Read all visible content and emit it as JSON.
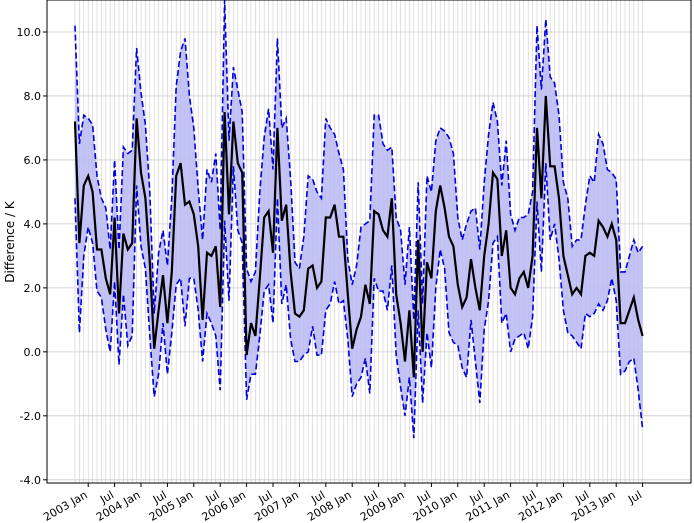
{
  "chart_data": {
    "type": "line",
    "title": "",
    "xlabel": "",
    "ylabel": "Difference / K",
    "ylim": [
      -4.1,
      11.0
    ],
    "yticks": [
      "-4.0",
      "-2.0",
      "0.0",
      "2.0",
      "4.0",
      "6.0",
      "8.0",
      "10.0"
    ],
    "xticks": [
      "2003 Jan",
      "Jul",
      "2004 Jan",
      "Jul",
      "2005 Jan",
      "Jul",
      "2006 Jan",
      "Jul",
      "2007 Jan",
      "Jul",
      "2008 Jan",
      "Jul",
      "2009 Jan",
      "Jul",
      "2010 Jan",
      "Jul",
      "2011 Jan",
      "Jul",
      "2012 Jan",
      "Jul",
      "2013 Jan",
      "Jul"
    ],
    "grid": true,
    "colors": {
      "mean": "#000000",
      "bounds": "#0000dd",
      "fill": "#b8b8f4",
      "grid": "#cccccc"
    },
    "start": "2002-10",
    "series": [
      {
        "role": "mean",
        "values": [
          7.2,
          3.4,
          5.2,
          5.5,
          5.0,
          3.2,
          3.2,
          2.3,
          1.8,
          4.2,
          1.2,
          3.7,
          3.2,
          3.4,
          7.3,
          5.6,
          4.8,
          2.8,
          0.1,
          1.3,
          2.4,
          0.9,
          2.5,
          5.5,
          5.9,
          4.6,
          4.7,
          4.3,
          3.3,
          1.0,
          3.1,
          3.0,
          3.3,
          1.4,
          7.5,
          4.3,
          7.2,
          5.9,
          5.6,
          -0.1,
          0.9,
          0.5,
          2.3,
          4.2,
          4.4,
          3.1,
          7.0,
          4.1,
          4.6,
          2.5,
          1.2,
          1.1,
          1.3,
          2.6,
          2.7,
          2.0,
          2.2,
          4.2,
          4.2,
          4.6,
          3.6,
          3.6,
          1.8,
          0.1,
          0.7,
          1.1,
          2.1,
          1.5,
          4.4,
          4.3,
          3.8,
          3.6,
          4.8,
          1.8,
          0.9,
          -0.3,
          1.3,
          -0.8,
          3.5,
          0.0,
          2.8,
          2.3,
          4.4,
          5.2,
          4.5,
          3.6,
          3.3,
          2.1,
          1.4,
          1.7,
          2.9,
          2.0,
          1.3,
          3.0,
          4.0,
          5.6,
          5.4,
          3.0,
          3.8,
          2.0,
          1.8,
          2.3,
          2.5,
          2.0,
          3.0,
          7.0,
          4.8,
          8.0,
          5.8,
          5.8,
          4.8,
          3.0,
          2.4,
          1.8,
          2.0,
          1.8,
          3.0,
          3.1,
          3.0,
          4.1,
          3.9,
          3.6,
          4.0,
          3.5,
          0.9,
          0.9,
          1.3,
          1.7,
          1.0,
          0.5
        ]
      },
      {
        "role": "upper",
        "values": [
          10.2,
          6.5,
          7.4,
          7.3,
          7.1,
          5.5,
          4.8,
          4.5,
          3.2,
          6.0,
          3.2,
          6.4,
          6.2,
          6.3,
          9.5,
          8.1,
          7.1,
          5.0,
          1.2,
          3.1,
          3.8,
          2.7,
          4.8,
          8.3,
          9.4,
          9.8,
          8.0,
          7.0,
          5.1,
          3.5,
          5.7,
          5.3,
          6.2,
          3.8,
          11.0,
          6.6,
          8.9,
          8.2,
          7.5,
          2.6,
          2.2,
          2.5,
          5.0,
          6.7,
          7.6,
          5.7,
          9.8,
          7.0,
          7.3,
          5.4,
          2.8,
          2.6,
          3.6,
          5.5,
          5.4,
          5.0,
          4.8,
          7.3,
          7.0,
          6.8,
          6.2,
          5.7,
          2.9,
          2.1,
          2.7,
          3.9,
          4.0,
          4.1,
          7.4,
          7.4,
          6.5,
          6.3,
          6.4,
          4.2,
          3.8,
          2.1,
          3.9,
          1.0,
          5.3,
          1.5,
          5.5,
          5.0,
          6.6,
          7.0,
          6.9,
          6.7,
          6.2,
          4.2,
          3.5,
          4.0,
          4.4,
          4.5,
          3.2,
          5.3,
          6.8,
          7.8,
          7.2,
          5.2,
          6.6,
          4.3,
          3.8,
          4.2,
          4.2,
          4.3,
          5.0,
          10.2,
          8.2,
          10.4,
          8.6,
          8.4,
          7.4,
          5.3,
          4.8,
          3.3,
          3.5,
          3.5,
          4.6,
          5.5,
          5.3,
          6.8,
          6.5,
          5.7,
          5.6,
          5.4,
          2.5,
          2.5,
          3.0,
          3.5,
          3.1,
          3.3
        ]
      },
      {
        "role": "lower",
        "values": [
          4.8,
          0.6,
          3.0,
          3.9,
          3.4,
          1.9,
          1.7,
          0.7,
          0.0,
          2.2,
          -0.4,
          1.8,
          0.2,
          0.5,
          5.2,
          3.3,
          2.6,
          0.5,
          -1.4,
          -0.7,
          0.9,
          -0.7,
          0.6,
          2.1,
          2.3,
          0.8,
          2.3,
          2.3,
          1.3,
          -0.3,
          1.2,
          0.9,
          0.5,
          -1.2,
          4.1,
          1.6,
          5.8,
          3.8,
          3.4,
          -1.5,
          -0.7,
          -0.7,
          0.5,
          1.9,
          2.1,
          0.9,
          4.8,
          1.5,
          2.1,
          0.4,
          -0.3,
          -0.3,
          -0.1,
          0.0,
          0.8,
          -0.1,
          -0.1,
          1.3,
          1.5,
          2.2,
          1.5,
          1.6,
          0.4,
          -1.4,
          -1.0,
          -0.8,
          -0.2,
          -1.3,
          2.3,
          1.9,
          1.9,
          1.3,
          2.7,
          -0.1,
          -1.1,
          -2.0,
          -0.8,
          -2.7,
          1.3,
          -1.6,
          0.6,
          -0.5,
          2.0,
          3.2,
          2.6,
          0.6,
          0.3,
          0.2,
          -0.5,
          -0.8,
          1.0,
          -0.3,
          -1.6,
          0.7,
          1.6,
          3.4,
          3.6,
          0.9,
          1.2,
          0.0,
          0.4,
          0.5,
          0.6,
          0.1,
          1.1,
          4.7,
          2.5,
          5.9,
          3.5,
          4.0,
          2.9,
          1.3,
          0.6,
          0.5,
          0.3,
          0.1,
          1.2,
          1.1,
          1.2,
          1.5,
          1.3,
          1.6,
          2.3,
          1.6,
          -0.7,
          -0.6,
          -0.3,
          -0.2,
          -1.2,
          -2.4
        ]
      }
    ]
  }
}
